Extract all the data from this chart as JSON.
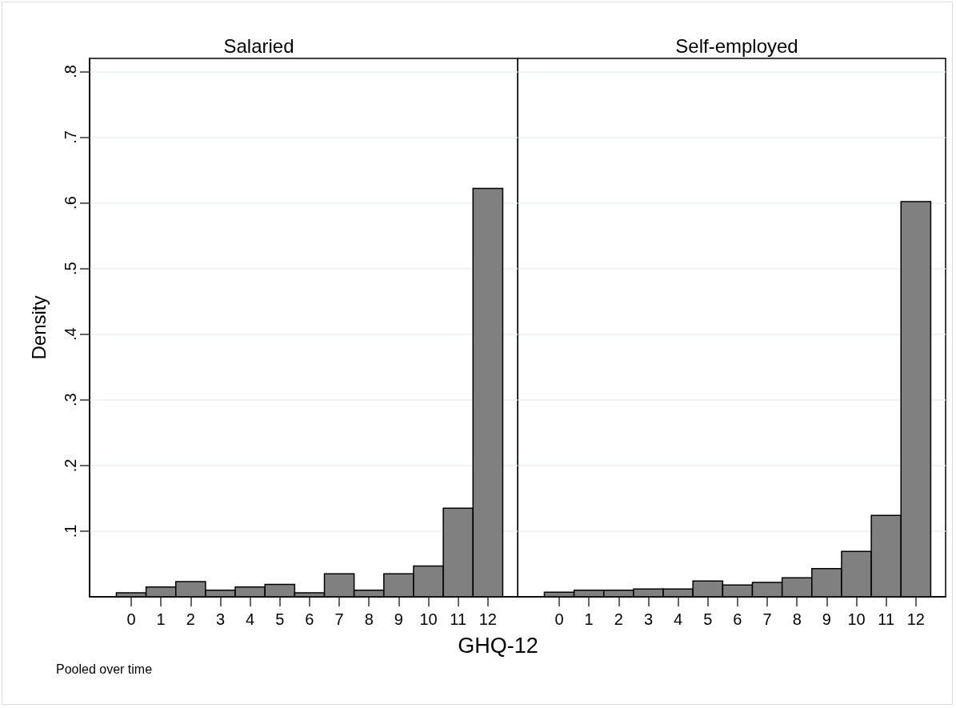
{
  "chart_data": [
    {
      "type": "histogram",
      "title": "Salaried",
      "ylabel": "Density",
      "xlabel": "GHQ-12",
      "annotations": [
        "Pooled over time"
      ],
      "bins": [
        -0.5,
        0.5,
        1.5,
        2.5,
        3.5,
        4.5,
        5.5,
        6.5,
        7.5,
        8.5,
        9.5,
        10.5,
        11.5,
        12.5
      ],
      "values": [
        0.006,
        0.015,
        0.023,
        0.01,
        0.015,
        0.019,
        0.006,
        0.035,
        0.01,
        0.035,
        0.047,
        0.135,
        0.622
      ],
      "color": "#808080",
      "xlim": [
        -1.4,
        13
      ],
      "xticks": [
        0,
        1,
        2,
        3,
        4,
        5,
        6,
        7,
        8,
        9,
        10,
        11,
        12
      ],
      "ylim": [
        0,
        0.82
      ],
      "yticks": [
        {
          "value": 0.1,
          "label": ".1"
        },
        {
          "value": 0.2,
          "label": ".2"
        },
        {
          "value": 0.3,
          "label": ".3"
        },
        {
          "value": 0.4,
          "label": ".4"
        },
        {
          "value": 0.5,
          "label": ".5"
        },
        {
          "value": 0.6,
          "label": ".6"
        },
        {
          "value": 0.7,
          "label": ".7"
        },
        {
          "value": 0.8,
          "label": ".8"
        }
      ],
      "grid": "y"
    },
    {
      "type": "histogram",
      "title": "Self-employed",
      "bins": [
        -0.5,
        0.5,
        1.5,
        2.5,
        3.5,
        4.5,
        5.5,
        6.5,
        7.5,
        8.5,
        9.5,
        10.5,
        11.5,
        12.5
      ],
      "values": [
        0.007,
        0.01,
        0.01,
        0.012,
        0.012,
        0.024,
        0.018,
        0.022,
        0.029,
        0.043,
        0.069,
        0.124,
        0.602
      ],
      "color": "#808080",
      "xlim": [
        -1.4,
        13
      ],
      "xticks": [
        0,
        1,
        2,
        3,
        4,
        5,
        6,
        7,
        8,
        9,
        10,
        11,
        12
      ],
      "ylim": [
        0,
        0.82
      ],
      "yticks": [
        {
          "value": 0.1,
          "label": null
        },
        {
          "value": 0.2,
          "label": null
        },
        {
          "value": 0.3,
          "label": null
        },
        {
          "value": 0.4,
          "label": null
        },
        {
          "value": 0.5,
          "label": null
        },
        {
          "value": 0.6,
          "label": null
        },
        {
          "value": 0.7,
          "label": null
        },
        {
          "value": 0.8,
          "label": null
        }
      ],
      "grid": "y",
      "tick_labels": "x"
    }
  ]
}
